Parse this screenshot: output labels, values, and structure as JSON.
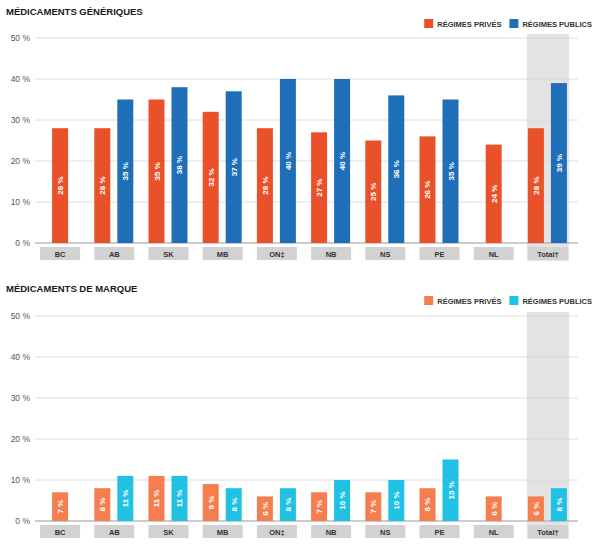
{
  "chart_data": [
    {
      "type": "bar",
      "title": "MÉDICAMENTS GÉNÉRIQUES",
      "categories": [
        "BC",
        "AB",
        "SK",
        "MB",
        "ON‡",
        "NB",
        "NS",
        "PE",
        "NL",
        "Total†"
      ],
      "series": [
        {
          "name": "RÉGIMES PRIVÉS",
          "color": "#e8512a",
          "values": [
            28,
            28,
            35,
            32,
            28,
            27,
            25,
            26,
            24,
            28
          ],
          "value_labels": [
            "28 %",
            "28 %",
            "35 %",
            "32 %",
            "28 %",
            "27 %",
            "25 %",
            "26 %",
            "24 %",
            "28 %"
          ]
        },
        {
          "name": "RÉGIMES PUBLICS",
          "color": "#1f6fb8",
          "values": [
            null,
            35,
            38,
            37,
            40,
            40,
            36,
            35,
            null,
            39
          ],
          "value_labels": [
            null,
            "35 %",
            "38 %",
            "37 %",
            "40 %",
            "40 %",
            "36 %",
            "35 %",
            null,
            "39 %"
          ]
        }
      ],
      "ylim": [
        0,
        50
      ],
      "yticks": [
        {
          "value": 0,
          "label": "0 %"
        },
        {
          "value": 10,
          "label": "10 %"
        },
        {
          "value": 20,
          "label": "20 %"
        },
        {
          "value": 30,
          "label": "30 %"
        },
        {
          "value": 40,
          "label": "40 %"
        },
        {
          "value": 50,
          "label": "50 %"
        }
      ],
      "grid": true,
      "legend": "top-right",
      "data_labels": true
    },
    {
      "type": "bar",
      "title": "MÉDICAMENTS DE MARQUE",
      "categories": [
        "BC",
        "AB",
        "SK",
        "MB",
        "ON‡",
        "NB",
        "NS",
        "PE",
        "NL",
        "Total†"
      ],
      "series": [
        {
          "name": "RÉGIMES PRIVÉS",
          "color": "#f47e50",
          "values": [
            7,
            8,
            11,
            9,
            6,
            7,
            7,
            8,
            6,
            6
          ],
          "value_labels": [
            "7 %",
            "8 %",
            "11 %",
            "9 %",
            "6 %",
            "7 %",
            "7 %",
            "8 %",
            "6 %",
            "6 %"
          ]
        },
        {
          "name": "RÉGIMES PUBLICS",
          "color": "#20c1e3",
          "values": [
            null,
            11,
            11,
            8,
            8,
            10,
            10,
            15,
            null,
            8
          ],
          "value_labels": [
            null,
            "11 %",
            "11 %",
            "8 %",
            "8 %",
            "10 %",
            "10 %",
            "15 %",
            null,
            "8 %"
          ]
        }
      ],
      "ylim": [
        0,
        50
      ],
      "yticks": [
        {
          "value": 0,
          "label": "0 %"
        },
        {
          "value": 10,
          "label": "10 %"
        },
        {
          "value": 20,
          "label": "20 %"
        },
        {
          "value": 30,
          "label": "30 %"
        },
        {
          "value": 40,
          "label": "40 %"
        },
        {
          "value": 50,
          "label": "50 %"
        }
      ],
      "grid": true,
      "legend": "top-right",
      "data_labels": true
    }
  ]
}
